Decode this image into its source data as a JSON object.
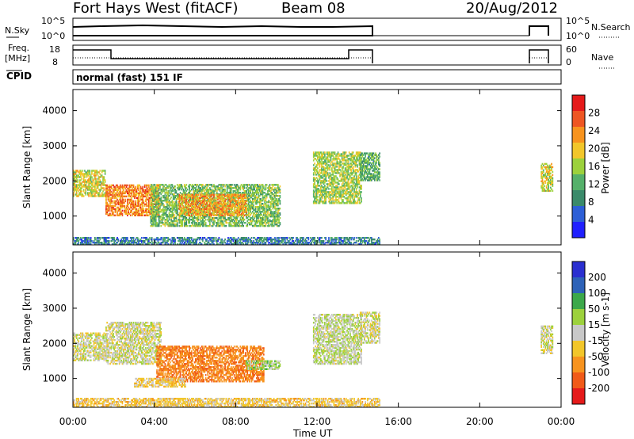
{
  "header": {
    "station": "Fort Hays West (fitACF)",
    "beam": "Beam 08",
    "date": "20/Aug/2012"
  },
  "strip": {
    "nsky_label": "N.Sky",
    "nsky_ticks": [
      "10^5",
      "10^0"
    ],
    "nsearch_ticks": [
      "10^5",
      "10^0"
    ],
    "nsearch_label": "N.Search",
    "freq_label": "Freq.",
    "freq_unit": "[MHz]",
    "freq_ticks": [
      "18",
      "8"
    ],
    "nave_ticks": [
      "60",
      "0"
    ],
    "nave_label": "Nave",
    "cpid_label": "CPID",
    "cpid_text": "normal (fast) 151 IF"
  },
  "colors": {
    "power": [
      "#2020ff",
      "#2d5fd6",
      "#3a8a6a",
      "#55b06a",
      "#9cd13c",
      "#f2c62a",
      "#f7931e",
      "#ee5522",
      "#e51a1a"
    ],
    "velocity": [
      "#e51a1a",
      "#f05a18",
      "#f7931e",
      "#f2c62a",
      "#c8c8c8",
      "#9cd13c",
      "#3ca84a",
      "#2d62b8",
      "#2a2fd0"
    ]
  },
  "chart_data": [
    {
      "type": "heatmap",
      "name": "power",
      "xlabel": "Time UT",
      "ylabel": "Slant Range [km]",
      "xlim": [
        0,
        24
      ],
      "ylim": [
        180,
        4600
      ],
      "x_ticks": [
        "00:00",
        "04:00",
        "08:00",
        "12:00",
        "16:00",
        "20:00",
        "00:00"
      ],
      "y_ticks": [
        "1000",
        "2000",
        "3000",
        "4000"
      ],
      "colorbar": {
        "label": "Power [dB]",
        "range": [
          0,
          32
        ],
        "ticks": [
          "4",
          "8",
          "12",
          "16",
          "20",
          "24",
          "28"
        ]
      },
      "echo_regions": [
        {
          "t0": 0.0,
          "t1": 1.6,
          "r0": 1550,
          "r1": 2300,
          "value": 18
        },
        {
          "t0": 1.6,
          "t1": 4.2,
          "r0": 1000,
          "r1": 1900,
          "value": 24
        },
        {
          "t0": 3.8,
          "t1": 10.2,
          "r0": 700,
          "r1": 1900,
          "value": 14
        },
        {
          "t0": 5.2,
          "t1": 8.5,
          "r0": 1000,
          "r1": 1600,
          "value": 22
        },
        {
          "t0": 11.8,
          "t1": 14.2,
          "r0": 1350,
          "r1": 2800,
          "value": 16
        },
        {
          "t0": 14.1,
          "t1": 15.1,
          "r0": 2000,
          "r1": 2800,
          "value": 12
        },
        {
          "t0": 0.0,
          "t1": 15.1,
          "r0": 180,
          "r1": 400,
          "value": 8
        },
        {
          "t0": 23.0,
          "t1": 23.6,
          "r0": 1700,
          "r1": 2500,
          "value": 18
        }
      ]
    },
    {
      "type": "heatmap",
      "name": "velocity",
      "xlabel": "Time UT",
      "ylabel": "Slant Range [km]",
      "xlim": [
        0,
        24
      ],
      "ylim": [
        180,
        4600
      ],
      "x_ticks": [
        "00:00",
        "04:00",
        "08:00",
        "12:00",
        "16:00",
        "20:00",
        "00:00"
      ],
      "y_ticks": [
        "1000",
        "2000",
        "3000",
        "4000"
      ],
      "colorbar": {
        "label": "Velocity [m s-1]",
        "ticks": [
          "200",
          "100",
          "50",
          "15",
          "-15",
          "-50",
          "-100",
          "-200"
        ],
        "bins": [
          -250,
          -200,
          -100,
          -50,
          -15,
          15,
          50,
          100,
          200,
          250
        ]
      },
      "echo_regions": [
        {
          "t0": 0.0,
          "t1": 1.6,
          "r0": 1500,
          "r1": 2300,
          "value": 0
        },
        {
          "t0": 1.6,
          "t1": 4.3,
          "r0": 1400,
          "r1": 2600,
          "value": 0
        },
        {
          "t0": 4.1,
          "t1": 9.4,
          "r0": 900,
          "r1": 1900,
          "value": -90
        },
        {
          "t0": 3.0,
          "t1": 5.5,
          "r0": 750,
          "r1": 1000,
          "value": -25
        },
        {
          "t0": 8.5,
          "t1": 10.2,
          "r0": 1250,
          "r1": 1500,
          "value": 30
        },
        {
          "t0": 11.8,
          "t1": 14.2,
          "r0": 1400,
          "r1": 2800,
          "value": 10
        },
        {
          "t0": 14.1,
          "t1": 15.1,
          "r0": 2000,
          "r1": 2900,
          "value": 0
        },
        {
          "t0": 0.0,
          "t1": 15.1,
          "r0": 180,
          "r1": 450,
          "value": -30
        },
        {
          "t0": 23.0,
          "t1": 23.6,
          "r0": 1700,
          "r1": 2500,
          "value": 0
        }
      ]
    }
  ]
}
